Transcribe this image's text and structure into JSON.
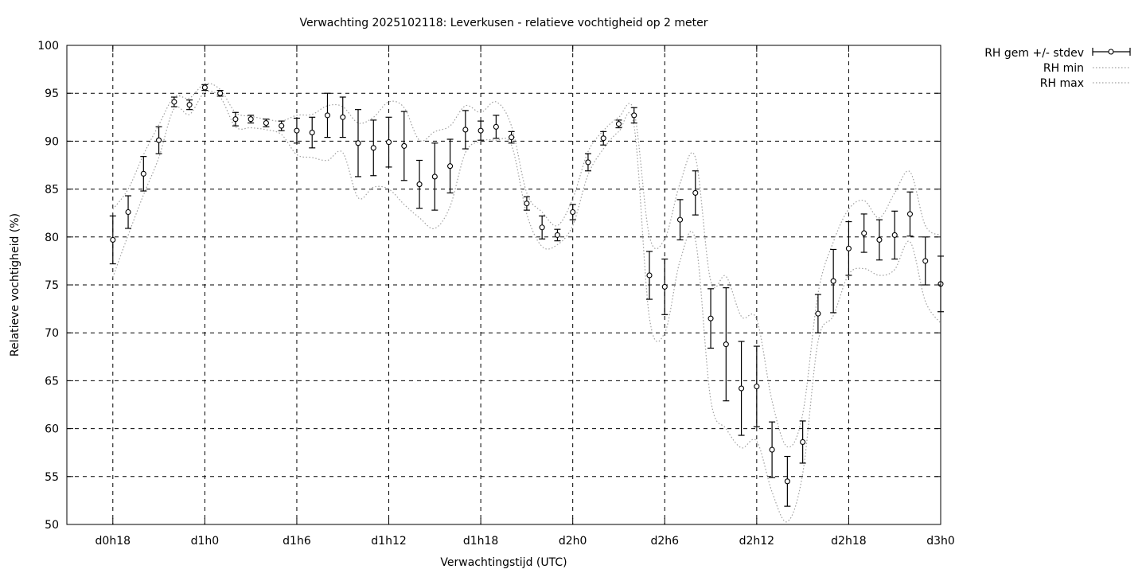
{
  "chart_data": {
    "type": "line",
    "title": "Verwachting 2025102118: Leverkusen - relatieve vochtigheid op 2 meter",
    "xlabel": "Verwachtingstijd (UTC)",
    "ylabel": "Relatieve vochtigheid (%)",
    "x_unit": "hours",
    "xlim": [
      15,
      72
    ],
    "ylim": [
      50,
      100
    ],
    "y_ticks": [
      50,
      55,
      60,
      65,
      70,
      75,
      80,
      85,
      90,
      95,
      100
    ],
    "x_ticks": [
      {
        "x": 18,
        "label": "d0h18"
      },
      {
        "x": 24,
        "label": "d1h0"
      },
      {
        "x": 30,
        "label": "d1h6"
      },
      {
        "x": 36,
        "label": "d1h12"
      },
      {
        "x": 42,
        "label": "d1h18"
      },
      {
        "x": 48,
        "label": "d2h0"
      },
      {
        "x": 54,
        "label": "d2h6"
      },
      {
        "x": 60,
        "label": "d2h12"
      },
      {
        "x": 66,
        "label": "d2h18"
      },
      {
        "x": 72,
        "label": "d3h0"
      }
    ],
    "grid": true,
    "legend_position": "top-right outside",
    "x": [
      18,
      19,
      20,
      21,
      22,
      23,
      24,
      25,
      26,
      27,
      28,
      29,
      30,
      31,
      32,
      33,
      34,
      35,
      36,
      37,
      38,
      39,
      40,
      41,
      42,
      43,
      44,
      45,
      46,
      47,
      48,
      49,
      50,
      51,
      52,
      53,
      54,
      55,
      56,
      57,
      58,
      59,
      60,
      61,
      62,
      63,
      64,
      65,
      66,
      67,
      68,
      69,
      70,
      71,
      72
    ],
    "series": [
      {
        "name": "RH gem +/- stdev",
        "style": "points with error bars",
        "values": [
          79.7,
          82.6,
          86.6,
          90.1,
          94.1,
          93.8,
          95.6,
          95.0,
          92.3,
          92.3,
          91.9,
          91.6,
          91.1,
          90.9,
          92.7,
          92.5,
          89.8,
          89.3,
          89.9,
          89.5,
          85.5,
          86.3,
          87.4,
          91.2,
          91.1,
          91.5,
          90.4,
          83.5,
          81.0,
          80.2,
          82.6,
          87.8,
          90.3,
          91.8,
          92.7,
          76.0,
          74.8,
          81.8,
          84.6,
          71.5,
          68.8,
          64.2,
          64.4,
          57.8,
          54.5,
          58.6,
          72.0,
          75.4,
          78.8,
          80.4,
          79.7,
          80.2,
          82.4,
          77.5,
          75.1
        ],
        "stdev": [
          2.5,
          1.7,
          1.8,
          1.4,
          0.5,
          0.5,
          0.3,
          0.3,
          0.7,
          0.4,
          0.4,
          0.5,
          1.3,
          1.6,
          2.3,
          2.1,
          3.5,
          2.9,
          2.6,
          3.6,
          2.5,
          3.5,
          2.8,
          2.0,
          1.0,
          1.2,
          0.6,
          0.7,
          1.2,
          0.6,
          0.8,
          0.9,
          0.7,
          0.4,
          0.8,
          2.5,
          2.9,
          2.1,
          2.3,
          3.1,
          5.9,
          4.9,
          4.2,
          2.9,
          2.6,
          2.2,
          2.0,
          3.3,
          2.8,
          2.0,
          2.1,
          2.5,
          2.3,
          2.5,
          2.9
        ],
        "color": "#000000"
      },
      {
        "name": "RH min",
        "style": "dotted",
        "values": [
          75.8,
          80.2,
          84.4,
          88.3,
          93.4,
          92.8,
          95.1,
          94.6,
          91.5,
          91.4,
          91.2,
          90.7,
          88.6,
          88.3,
          88.0,
          88.8,
          84.1,
          85.2,
          85.0,
          83.4,
          82.0,
          80.9,
          83.2,
          88.8,
          90.0,
          90.1,
          89.6,
          82.4,
          79.0,
          79.2,
          81.2,
          86.5,
          89.2,
          91.0,
          91.6,
          71.6,
          70.0,
          77.5,
          79.7,
          63.0,
          60.0,
          58.0,
          58.7,
          53.4,
          50.3,
          55.3,
          69.1,
          71.8,
          76.1,
          76.7,
          76.0,
          76.6,
          79.5,
          73.3,
          71.0
        ],
        "color": "#a0a0a0"
      },
      {
        "name": "RH max",
        "style": "dotted",
        "values": [
          82.9,
          85.0,
          88.6,
          91.7,
          94.6,
          94.5,
          96.0,
          95.4,
          93.0,
          92.6,
          92.3,
          92.1,
          92.7,
          92.8,
          93.7,
          93.6,
          91.9,
          92.5,
          94.1,
          93.5,
          90.1,
          91.0,
          91.6,
          93.7,
          93.0,
          94.1,
          91.6,
          84.6,
          82.6,
          81.2,
          84.0,
          88.9,
          91.1,
          92.5,
          93.1,
          80.1,
          79.8,
          85.6,
          88.3,
          75.4,
          75.9,
          71.7,
          71.4,
          62.9,
          58.1,
          61.5,
          74.1,
          79.5,
          82.9,
          83.8,
          82.0,
          84.6,
          86.8,
          81.2,
          80.2
        ],
        "color": "#a0a0a0"
      }
    ]
  }
}
